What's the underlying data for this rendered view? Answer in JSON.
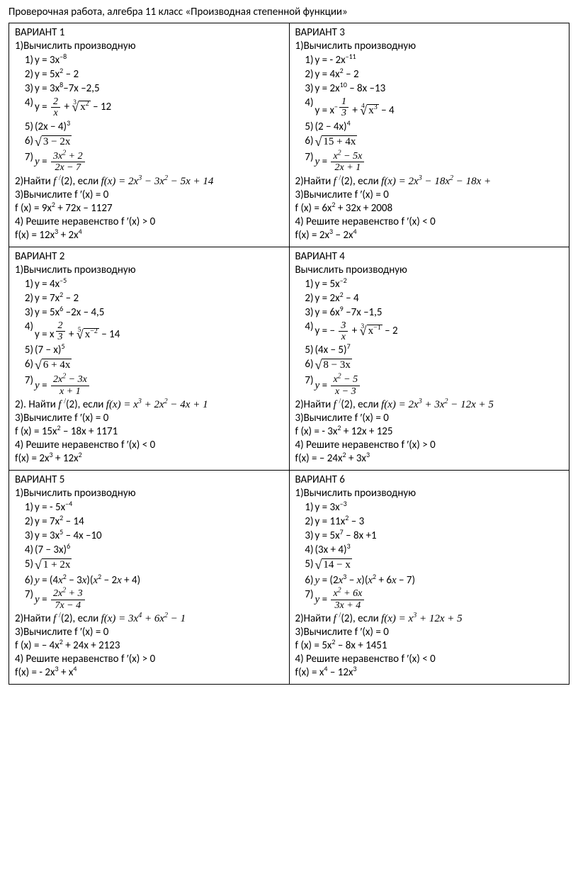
{
  "title": "Проверочная работа, алгебра 11 класс «Производная степенной функции»",
  "labels": {
    "t1": "1)Вычислить производную",
    "t1alt": "Вычислить производную",
    "t2_prefix": "2)Найти ",
    "t2_prefix_dot": "2). Найти ",
    "t2_mid": ", если ",
    "t3": "3)Вычислите f ′(x) = 0",
    "t4gt": "4) Решите неравенство f ′(x) > 0",
    "t4lt": "4) Решите неравенство f ′(x) < 0"
  },
  "variants": [
    {
      "name": "ВАРИАНТ 1",
      "t1_key": "t1",
      "items": [
        {
          "n": "1)",
          "html": "y = 3x<sup>–8</sup>"
        },
        {
          "n": "2)",
          "html": "y = 5x<sup>2</sup> – 2"
        },
        {
          "n": "3)",
          "html": "y = 3x<sup>8</sup>–7x –2,5"
        },
        {
          "n": "4)",
          "html": "y = <span class='frac'><span class='n'>2</span><span class='d'>x</span></span> + <span class='sqrt'><span class='ridx'>3</span><span class='rad'>√</span><span class='arg'>x<sup>2</sup></span></span> – 12"
        },
        {
          "n": "5)",
          "html": "(2x − 4)<sup>3</sup>"
        },
        {
          "n": "6)",
          "html": "<span class='sqrt'><span class='rad'>√</span><span class='arg'>3 − 2x</span></span>"
        },
        {
          "n": "7)",
          "html": "<span class='math'>y</span> = <span class='frac'><span class='n'>3<span class=\"math\">x</span><sup>2</sup> + 2</span><span class='d'>2<span class=\"math\">x</span> − 7</span></span>"
        }
      ],
      "t2_formula": "f(x) = 2x<sup>3</sup> − 3x<sup>2</sup> − 5x + 14",
      "t2_prefix_key": "t2_prefix",
      "t3f": "f (x) = 9x<sup>2</sup> + 72x – 1127",
      "t4_key": "t4gt",
      "t4f": "f(x) = 12x<sup>3</sup> + 2x<sup>4</sup>"
    },
    {
      "name": "ВАРИАНТ 3",
      "t1_key": "t1",
      "items": [
        {
          "n": "1)",
          "html": "y = - 2x<sup>–11</sup>"
        },
        {
          "n": "2)",
          "html": "y = 4x<sup>2</sup> – 2"
        },
        {
          "n": "3)",
          "html": "y = 2x<sup>10</sup> – 8x –13"
        },
        {
          "n": "4)",
          "html": "y = x<sup>−<span class='frac' style='font-size:9px'><span class='n'>1</span><span class='d'>3</span></span></sup> + <span class='sqrt'><span class='ridx'>4</span><span class='rad'>√</span><span class='arg'>x<sup>3</sup></span></span> − 4"
        },
        {
          "n": "5)",
          "html": "(2 − 4x)<sup>4</sup>"
        },
        {
          "n": "6)",
          "html": "<span class='sqrt'><span class='rad'>√</span><span class='arg'>15 + 4x</span></span>"
        },
        {
          "n": "7)",
          "html": "<span class='math'>y</span> = <span class='frac'><span class='n'><span class=\"math\">x</span><sup>2</sup> − 5<span class=\"math\">x</span></span><span class='d'>2<span class=\"math\">x</span> + 1</span></span>"
        }
      ],
      "t2_formula": "f(x) = 2x<sup>3</sup> − 18x<sup>2</sup> − 18x +",
      "t2_prefix_key": "t2_prefix",
      "t3f": "f (x) = 6x<sup>2</sup> + 32x + 2008",
      "t4_key": "t4lt",
      "t4f": "f(x) = 2x<sup>3</sup> − 2x<sup>4</sup>"
    },
    {
      "name": "ВАРИАНТ 2",
      "t1_key": "t1",
      "items": [
        {
          "n": "1)",
          "html": "y = 4x<sup>–5</sup>"
        },
        {
          "n": "2)",
          "html": "y = 7x<sup>2</sup> – 2"
        },
        {
          "n": "3)",
          "html": "y = 5x<sup>6</sup> –2x – 4,5"
        },
        {
          "n": "4)",
          "html": "y = x<sup><span class='frac' style='font-size:9px'><span class='n'>2</span><span class='d'>3</span></span></sup> + <span class='sqrt'><span class='ridx'>5</span><span class='rad'>√</span><span class='arg'>x<sup>−2</sup></span></span> − 14"
        },
        {
          "n": "5)",
          "html": "(7 − x)<sup>5</sup>"
        },
        {
          "n": "6)",
          "html": "<span class='sqrt'><span class='rad'>√</span><span class='arg'>6 + 4x</span></span>"
        },
        {
          "n": "7)",
          "html": "<span class='math'>y</span> = <span class='frac'><span class='n'>2<span class=\"math\">x</span><sup>2</sup> − 3<span class=\"math\">x</span></span><span class='d'><span class=\"math\">x</span> + 1</span></span>"
        }
      ],
      "t2_formula": "f(x) = x<sup>3</sup> + 2x<sup>2</sup> − 4x + 1",
      "t2_prefix_key": "t2_prefix_dot",
      "t3f": "f (x) = 15x<sup>2</sup> – 18x + 1171",
      "t4_key": "t4lt",
      "t4f": "f(x) = 2x<sup>3</sup> + 12x<sup>2</sup>"
    },
    {
      "name": "ВАРИАНТ 4",
      "t1_key": "t1alt",
      "items": [
        {
          "n": "1)",
          "html": "y = 5x<sup>–2</sup>"
        },
        {
          "n": "2)",
          "html": "y = 2x<sup>2</sup> – 4"
        },
        {
          "n": "3)",
          "html": "y = 6x<sup>9</sup> –7x –1,5"
        },
        {
          "n": "4)",
          "html": "y = − <span class='frac'><span class='n'>3</span><span class='d'>x</span></span> + <span class='sqrt'><span class='ridx'>3</span><span class='rad'>√</span><span class='arg'>x<sup>−1</sup></span></span> – 2"
        },
        {
          "n": "5)",
          "html": "(4x − 5)<sup>7</sup>"
        },
        {
          "n": "6)",
          "html": "<span class='sqrt'><span class='rad'>√</span><span class='arg'>8 − 3x</span></span>"
        },
        {
          "n": "7)",
          "html": "<span class='math'>y</span> = <span class='frac'><span class='n'><span class=\"math\">x</span><sup>2</sup> − 5</span><span class='d'><span class=\"math\">x</span> − 3</span></span>"
        }
      ],
      "t2_formula": "f(x) = 2x<sup>3</sup> + 3x<sup>2</sup> − 12x + 5",
      "t2_prefix_key": "t2_prefix",
      "t3f": "f (x) = - 3x<sup>2</sup> + 12x + 125",
      "t4_key": "t4gt",
      "t4f": "f(x) = – 24x<sup>2</sup> + 3x<sup>3</sup>"
    },
    {
      "name": "ВАРИАНТ 5",
      "t1_key": "t1",
      "items": [
        {
          "n": "1)",
          "html": "y = - 5x<sup>–4</sup>"
        },
        {
          "n": "2)",
          "html": "y = 7x<sup>2</sup> – 14"
        },
        {
          "n": "3)",
          "html": "y = 3x<sup>5</sup> – 4x –10"
        },
        {
          "n": "4)",
          "html": "(7 − 3x)<sup>6</sup>"
        },
        {
          "n": "5)",
          "html": "<span class='sqrt'><span class='rad'>√</span><span class='arg'>1 + 2x</span></span>"
        },
        {
          "n": "6)",
          "html": "<span class='math'>y</span> = (4<span class='math'>x</span><sup>2</sup> − 3<span class='math'>x</span>)(<span class='math'>x</span><sup>2</sup> − 2<span class='math'>x</span> + 4)"
        },
        {
          "n": "7)",
          "html": "<span class='math'>y</span> = <span class='frac'><span class='n'>2<span class=\"math\">x</span><sup>2</sup> + 3</span><span class='d'>7<span class=\"math\">x</span> − 4</span></span>"
        }
      ],
      "t2_formula": "f(x) = 3x<sup>4</sup> + 6x<sup>2</sup> − 1",
      "t2_prefix_key": "t2_prefix",
      "t3f": "f (x) = – 4x<sup>2</sup> + 24x + 2123",
      "t4_key": "t4gt",
      "t4f": "f(x) = - 2x<sup>3</sup> + x<sup>4</sup>"
    },
    {
      "name": "ВАРИАНТ 6",
      "t1_key": "t1",
      "items": [
        {
          "n": "1)",
          "html": "y = 3x<sup>–3</sup>"
        },
        {
          "n": "2)",
          "html": "y = 11x<sup>2</sup> – 3"
        },
        {
          "n": "3)",
          "html": "y = 5x<sup>7</sup> – 8x +1"
        },
        {
          "n": "4)",
          "html": "(3x + 4)<sup>3</sup>"
        },
        {
          "n": "5)",
          "html": "<span class='sqrt'><span class='rad'>√</span><span class='arg'>14 − x</span></span>"
        },
        {
          "n": "6)",
          "html": "<span class='math'>y</span> = (2<span class='math'>x</span><sup>3</sup> − <span class='math'>x</span>)(<span class='math'>x</span><sup>2</sup> + 6<span class='math'>x</span> − 7)"
        },
        {
          "n": "7)",
          "html": "<span class='math'>y</span> = <span class='frac'><span class='n'><span class=\"math\">x</span><sup>2</sup> + 6<span class=\"math\">x</span></span><span class='d'>3<span class=\"math\">x</span> + 4</span></span>"
        }
      ],
      "t2_formula": "f(x) = x<sup>3</sup> + 12x + 5",
      "t2_prefix_key": "t2_prefix",
      "t3f": "f (x) = 5x<sup>2</sup> – 8x + 1451",
      "t4_key": "t4lt",
      "t4f": "f(x) = x<sup>4</sup> – 12x<sup>3</sup>"
    }
  ]
}
